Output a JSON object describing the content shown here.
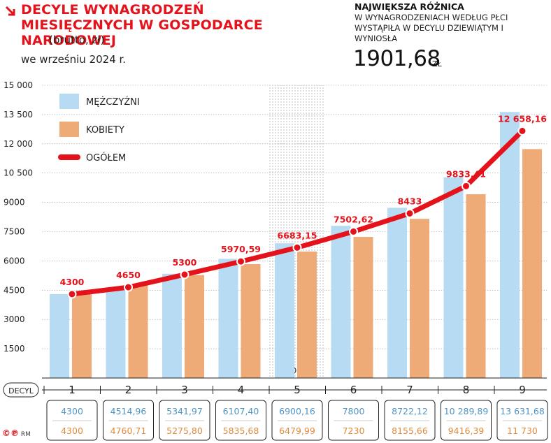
{
  "header": {
    "title": "DECYLE WYNAGRODZEŃ MIESIĘCZNYCH W GOSPODARCE NARODOWEJ",
    "subtitle_unit": "(brutto, zł)",
    "subtitle_date": "we wrześniu 2024 r.",
    "highlight_heading": "NAJWIĘKSZA RÓŻNICA",
    "highlight_text": "W WYNAGRODZENIACH WEDŁUG PŁCI WYSTĄPIŁA W DECYLU DZIEWIĄTYM I WYNIOSŁA",
    "highlight_value": "1901,68",
    "highlight_unit": "ZŁ"
  },
  "credit": {
    "symbols": "©℗",
    "initials": "RM"
  },
  "chart_data": {
    "type": "bar",
    "xlabel": "DECYL",
    "categories": [
      "1",
      "2",
      "3",
      "4",
      "5",
      "6",
      "7",
      "8",
      "9"
    ],
    "ylim": [
      0,
      15000
    ],
    "y_ticks": [
      1500,
      3000,
      4500,
      6000,
      7500,
      9000,
      10500,
      12000,
      13500,
      15000
    ],
    "y_tick_labels": [
      "1500",
      "3000",
      "4500",
      "6000",
      "7500",
      "9000",
      "10 500",
      "12 000",
      "13 500",
      "15 000"
    ],
    "grid": true,
    "legend_position": "top-left",
    "highlight_category": "5",
    "highlight_label": "MEDIANA",
    "series": [
      {
        "name": "MĘŻCZYŹNI",
        "type": "bar",
        "color": "#b7dbf3",
        "values": [
          4300,
          4514.96,
          5341.97,
          6107.4,
          6900.16,
          7800,
          8722.12,
          10289.89,
          13631.68
        ],
        "labels": [
          "4300",
          "4514,96",
          "5341,97",
          "6107,40",
          "6900,16",
          "7800",
          "8722,12",
          "10 289,89",
          "13 631,68"
        ],
        "label_color": "#4f95c4"
      },
      {
        "name": "KOBIETY",
        "type": "bar",
        "color": "#efab77",
        "values": [
          4300,
          4760.71,
          5275.8,
          5835.68,
          6479.99,
          7230,
          8155.66,
          9416.39,
          11730
        ],
        "labels": [
          "4300",
          "4760,71",
          "5275,80",
          "5835,68",
          "6479,99",
          "7230",
          "8155,66",
          "9416,39",
          "11 730"
        ],
        "label_color": "#e08a3c"
      },
      {
        "name": "OGÓŁEM",
        "type": "line",
        "color": "#e3121b",
        "values": [
          4300,
          4650,
          5300,
          5970.59,
          6683.15,
          7502.62,
          8433,
          9833.41,
          12658.16
        ],
        "labels": [
          "4300",
          "4650",
          "5300",
          "5970,59",
          "6683,15",
          "7502,62",
          "8433",
          "9833,41",
          "12 658,16"
        ]
      }
    ]
  }
}
